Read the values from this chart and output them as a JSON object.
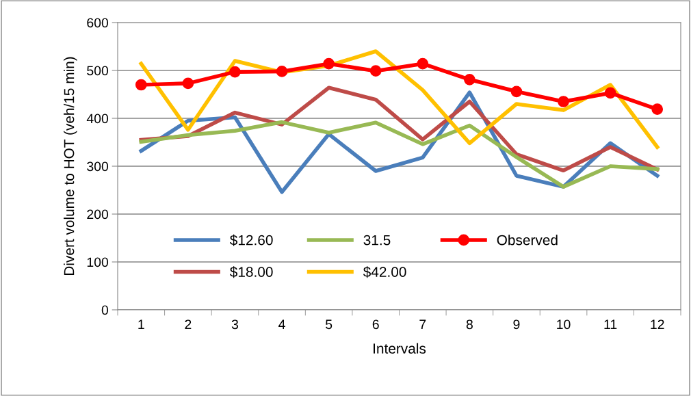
{
  "chart_data": {
    "type": "line",
    "xlabel": "Intervals",
    "ylabel": "Divert volume to HOT (veh/15 min)",
    "categories": [
      "1",
      "2",
      "3",
      "4",
      "5",
      "6",
      "7",
      "8",
      "9",
      "10",
      "11",
      "12"
    ],
    "ylim": [
      0,
      600
    ],
    "yticks": [
      0,
      100,
      200,
      300,
      400,
      500,
      600
    ],
    "grid": "y",
    "legend": "bottom left",
    "marker": "none",
    "series": [
      {
        "name": "$12.60",
        "color": "#4a7ebb",
        "values": [
          332,
          395,
          402,
          246,
          367,
          290,
          318,
          454,
          280,
          257,
          348,
          280
        ]
      },
      {
        "name": "$18.00",
        "color": "#be4b48",
        "values": [
          355,
          363,
          412,
          387,
          464,
          439,
          356,
          435,
          325,
          291,
          340,
          293
        ]
      },
      {
        "name": "31.5",
        "color": "#98b954",
        "values": [
          351,
          365,
          374,
          392,
          370,
          391,
          346,
          385,
          319,
          257,
          300,
          294
        ]
      },
      {
        "name": "$42.00",
        "color": "#ffc000",
        "values": [
          514,
          376,
          520,
          496,
          510,
          540,
          459,
          348,
          430,
          417,
          470,
          340
        ]
      },
      {
        "name": "Observed",
        "color": "#ff0000",
        "marker": "circle",
        "values": [
          470,
          473,
          497,
          498,
          514,
          499,
          514,
          481,
          456,
          435,
          453,
          419
        ]
      }
    ]
  }
}
